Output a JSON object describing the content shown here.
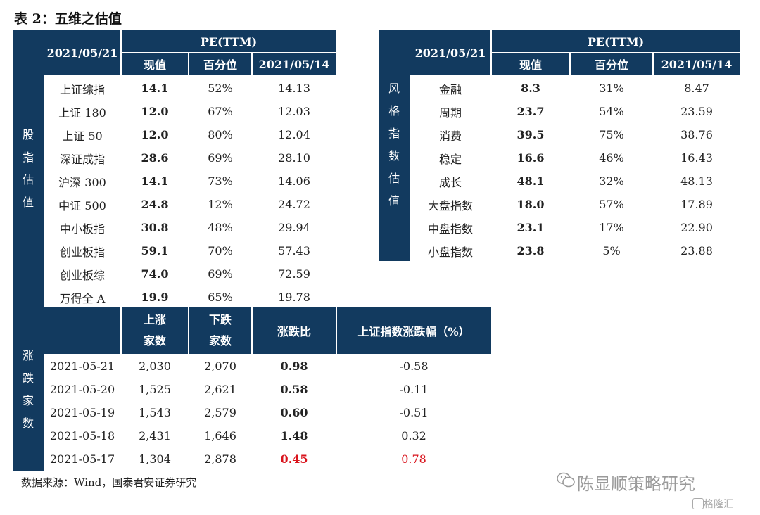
{
  "title": "表 2：五维之估值",
  "left_table": {
    "date_header": "2021/05/21",
    "pe_header": "PE(TTM)",
    "col_current": "现值",
    "col_pct": "百分位",
    "col_prev": "2021/05/14",
    "side_label": [
      "股",
      "指",
      "估",
      "值"
    ],
    "rows": [
      {
        "name": "上证综指",
        "cur": "14.1",
        "pct": "52%",
        "prev": "14.13"
      },
      {
        "name": "上证 180",
        "cur": "12.0",
        "pct": "67%",
        "prev": "12.03"
      },
      {
        "name": "上证 50",
        "cur": "12.0",
        "pct": "80%",
        "prev": "12.04"
      },
      {
        "name": "深证成指",
        "cur": "28.6",
        "pct": "69%",
        "prev": "28.10"
      },
      {
        "name": "沪深 300",
        "cur": "14.1",
        "pct": "73%",
        "prev": "14.06"
      },
      {
        "name": "中证 500",
        "cur": "24.8",
        "pct": "12%",
        "prev": "24.72"
      },
      {
        "name": "中小板指",
        "cur": "30.8",
        "pct": "48%",
        "prev": "29.94"
      },
      {
        "name": "创业板指",
        "cur": "59.1",
        "pct": "70%",
        "prev": "57.43"
      },
      {
        "name": "创业板综",
        "cur": "74.0",
        "pct": "69%",
        "prev": "72.59"
      },
      {
        "name": "万得全 A",
        "cur": "19.9",
        "pct": "65%",
        "prev": "19.78"
      }
    ]
  },
  "right_table": {
    "date_header": "2021/05/21",
    "pe_header": "PE(TTM)",
    "col_current": "现值",
    "col_pct": "百分位",
    "col_prev": "2021/05/14",
    "side_label": [
      "风",
      "格",
      "指",
      "数",
      "估",
      "值"
    ],
    "rows": [
      {
        "name": "金融",
        "cur": "8.3",
        "pct": "31%",
        "prev": "8.47"
      },
      {
        "name": "周期",
        "cur": "23.7",
        "pct": "54%",
        "prev": "23.59"
      },
      {
        "name": "消费",
        "cur": "39.5",
        "pct": "75%",
        "prev": "38.76"
      },
      {
        "name": "稳定",
        "cur": "16.6",
        "pct": "46%",
        "prev": "16.43"
      },
      {
        "name": "成长",
        "cur": "48.1",
        "pct": "32%",
        "prev": "48.13"
      },
      {
        "name": "大盘指数",
        "cur": "18.0",
        "pct": "57%",
        "prev": "17.89"
      },
      {
        "name": "中盘指数",
        "cur": "23.1",
        "pct": "17%",
        "prev": "22.90"
      },
      {
        "name": "小盘指数",
        "cur": "23.8",
        "pct": "5%",
        "prev": "23.88"
      }
    ]
  },
  "bottom_table": {
    "col_up": [
      "上涨",
      "家数"
    ],
    "col_down": [
      "下跌",
      "家数"
    ],
    "col_ratio": "涨跌比",
    "col_index": "上证指数涨跌幅（%）",
    "side_label": [
      "涨",
      "跌",
      "家",
      "数"
    ],
    "rows": [
      {
        "date": "2021-05-21",
        "up": "2,030",
        "down": "2,070",
        "ratio": "0.98",
        "chg": "-0.58",
        "highlight": false
      },
      {
        "date": "2021-05-20",
        "up": "1,525",
        "down": "2,621",
        "ratio": "0.58",
        "chg": "-0.11",
        "highlight": false
      },
      {
        "date": "2021-05-19",
        "up": "1,543",
        "down": "2,579",
        "ratio": "0.60",
        "chg": "-0.51",
        "highlight": false
      },
      {
        "date": "2021-05-18",
        "up": "2,431",
        "down": "1,646",
        "ratio": "1.48",
        "chg": "0.32",
        "highlight": false
      },
      {
        "date": "2021-05-17",
        "up": "1,304",
        "down": "2,878",
        "ratio": "0.45",
        "chg": "0.78",
        "highlight": true
      }
    ]
  },
  "source": "数据来源：Wind，国泰君安证券研究",
  "watermark": "陈显顺策略研究",
  "watermark_small": "格隆汇",
  "colors": {
    "header_bg": "#123a5f",
    "highlight": "#d9131c"
  }
}
